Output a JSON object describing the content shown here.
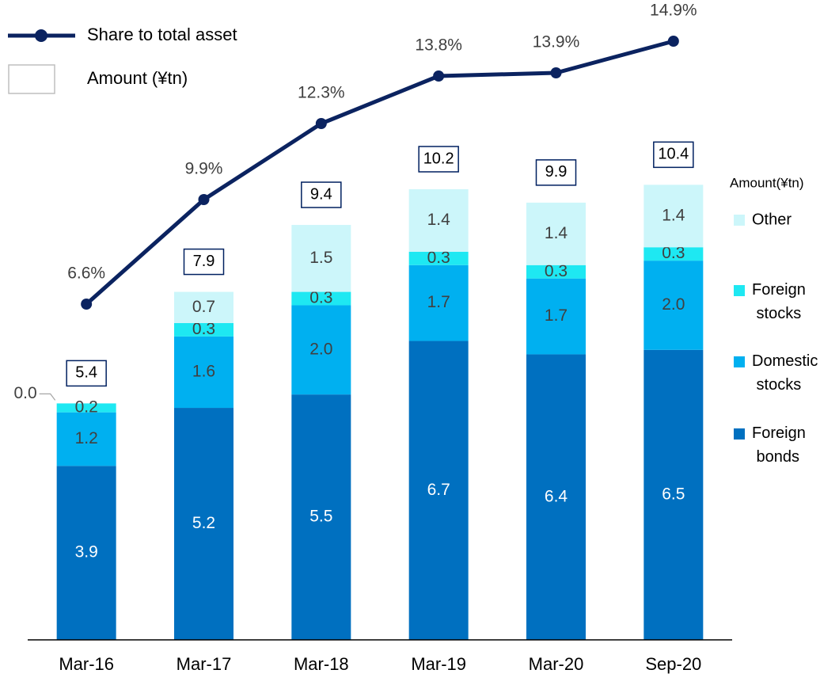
{
  "chart_data": {
    "type": "bar",
    "stacked": true,
    "categories": [
      "Mar-16",
      "Mar-17",
      "Mar-18",
      "Mar-19",
      "Mar-20",
      "Sep-20"
    ],
    "ylim": [
      0,
      14.2
    ],
    "y2lim": [
      -4,
      16
    ],
    "legend_title": "Amount(¥tn)",
    "series": [
      {
        "name": "Foreign bonds",
        "color": "#0070c0",
        "values": [
          3.9,
          5.2,
          5.5,
          6.7,
          6.4,
          6.5
        ],
        "value_labels": [
          "3.9",
          "5.2",
          "5.5",
          "6.7",
          "6.4",
          "6.5"
        ]
      },
      {
        "name": "Domestic stocks",
        "color": "#00b0f0",
        "values": [
          1.2,
          1.6,
          2.0,
          1.7,
          1.7,
          2.0
        ],
        "value_labels": [
          "1.2",
          "1.6",
          "2.0",
          "1.7",
          "1.7",
          "2.0"
        ]
      },
      {
        "name": "Foreign stocks",
        "color": "#1ee8f2",
        "values": [
          0.2,
          0.3,
          0.3,
          0.3,
          0.3,
          0.3
        ],
        "value_labels": [
          "0.2",
          "0.3",
          "0.3",
          "0.3",
          "0.3",
          "0.3"
        ]
      },
      {
        "name": "Other",
        "color": "#ccf6fa",
        "values": [
          0.0,
          0.7,
          1.5,
          1.4,
          1.4,
          1.4
        ],
        "value_labels": [
          "0.0",
          "0.7",
          "1.5",
          "1.4",
          "1.4",
          "1.4"
        ]
      }
    ],
    "totals": {
      "name": "Amount (¥tn)",
      "color": "#002060",
      "values": [
        5.4,
        7.9,
        9.4,
        10.2,
        9.9,
        10.4
      ]
    },
    "line": {
      "name": "Share to total asset",
      "type": "line",
      "axis": "y2",
      "color": "#0b2360",
      "values": [
        6.6,
        9.9,
        12.3,
        13.8,
        13.9,
        14.9
      ],
      "value_labels": [
        "6.6%",
        "9.9%",
        "12.3%",
        "13.8%",
        "13.9%",
        "14.9%"
      ]
    }
  }
}
